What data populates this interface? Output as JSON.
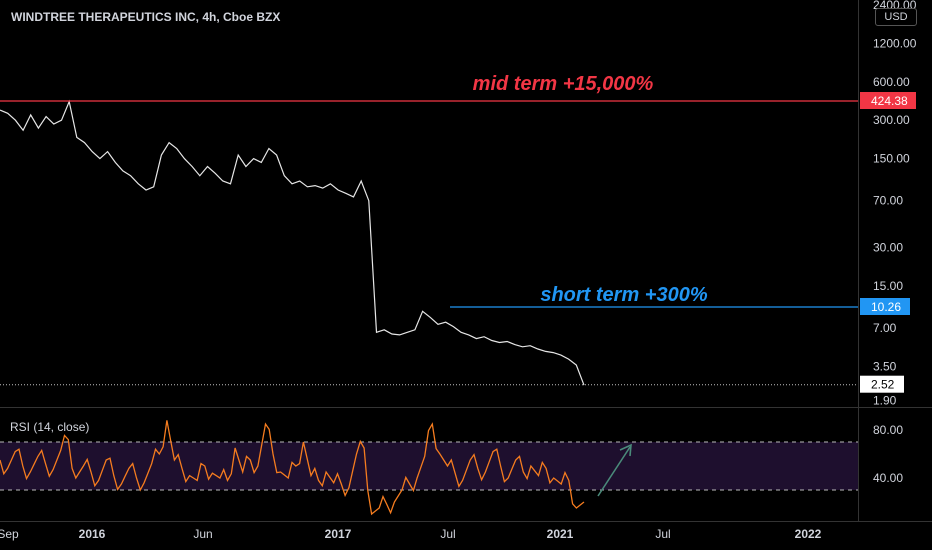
{
  "header": {
    "title": "WINDTREE THERAPEUTICS INC, 4h, Cboe BZX",
    "currency": "USD"
  },
  "colors": {
    "background": "#000000",
    "price_line": "#e6e6e6",
    "mid_term": "#f23645",
    "short_term": "#2196f3",
    "rsi_line": "#f57c1f",
    "rsi_band": "#1e0f2e",
    "arrow": "#4a8a7a",
    "grid_text": "#d1d4dc"
  },
  "chart_data": [
    {
      "type": "line",
      "panel": "price",
      "scale": "log",
      "y_ticks": [
        "2400.00",
        "1200.00",
        "600.00",
        "300.00",
        "150.00",
        "70.00",
        "30.00",
        "15.00",
        "7.00",
        "3.50",
        "1.90"
      ],
      "x_ticks": [
        "Sep",
        "2016",
        "Jun",
        "2017",
        "Jul",
        "2021",
        "Jul",
        "2022"
      ],
      "price_labels": {
        "mid_term": "424.38",
        "short_term": "10.26",
        "last": "2.52"
      },
      "annotations": {
        "mid_term": "mid term +15,000%",
        "short_term": "short term +300%"
      },
      "series": [
        {
          "x": [
            0,
            0.02,
            0.04,
            0.06,
            0.08,
            0.1,
            0.12,
            0.14,
            0.16,
            0.18,
            0.2,
            0.22,
            0.24,
            0.26,
            0.28,
            0.3,
            0.32,
            0.34,
            0.36,
            0.38,
            0.4,
            0.42,
            0.44,
            0.46,
            0.48,
            0.5,
            0.52,
            0.54,
            0.56,
            0.58,
            0.6,
            0.62,
            0.64,
            0.66,
            0.68,
            0.7,
            0.72,
            0.74,
            0.76,
            0.78,
            0.8,
            0.82,
            0.84,
            0.86,
            0.88,
            0.9,
            0.92,
            0.94,
            0.96,
            0.98,
            1.0,
            1.02,
            1.04,
            1.06,
            1.08,
            1.1,
            1.12,
            1.14,
            1.16,
            1.18,
            1.2,
            1.22,
            1.24,
            1.26,
            1.28,
            1.3,
            1.32,
            1.34,
            1.36,
            1.38,
            1.4,
            1.42,
            1.44,
            1.46,
            1.48,
            1.5,
            1.52
          ],
          "y": [
            360,
            340,
            300,
            250,
            330,
            260,
            320,
            280,
            300,
            420,
            220,
            200,
            170,
            150,
            170,
            140,
            120,
            110,
            95,
            85,
            90,
            160,
            200,
            180,
            150,
            130,
            110,
            130,
            115,
            100,
            95,
            160,
            130,
            150,
            140,
            180,
            160,
            110,
            95,
            100,
            90,
            92,
            88,
            95,
            85,
            80,
            75,
            100,
            70,
            6.5,
            6.8,
            6.3,
            6.2,
            6.5,
            6.8,
            9.5,
            8.5,
            7.5,
            7.8,
            7.2,
            6.5,
            6.2,
            5.8,
            6.0,
            5.6,
            5.4,
            5.5,
            5.2,
            5.0,
            5.1,
            4.8,
            4.6,
            4.5,
            4.3,
            4.0,
            3.6,
            2.5
          ]
        }
      ]
    },
    {
      "type": "line",
      "panel": "rsi",
      "label": "RSI (14, close)",
      "y_ticks": [
        "80.00",
        "40.00"
      ],
      "bands": [
        30,
        70
      ],
      "series": [
        {
          "y": [
            55,
            48,
            62,
            50,
            45,
            58,
            52,
            47,
            63,
            72,
            40,
            50,
            45,
            38,
            55,
            42,
            35,
            48,
            40,
            36,
            52,
            60,
            88,
            55,
            48,
            42,
            38,
            50,
            44,
            40,
            38,
            65,
            45,
            55,
            50,
            85,
            60,
            45,
            40,
            50,
            70,
            42,
            38,
            45,
            36,
            35,
            32,
            60,
            65,
            10,
            15,
            18,
            20,
            30,
            35,
            40,
            58,
            85,
            60,
            50,
            44,
            38,
            55,
            48,
            45,
            62,
            50,
            40,
            55,
            45,
            50,
            42,
            48,
            40,
            35,
            38,
            15,
            20
          ]
        }
      ]
    }
  ]
}
